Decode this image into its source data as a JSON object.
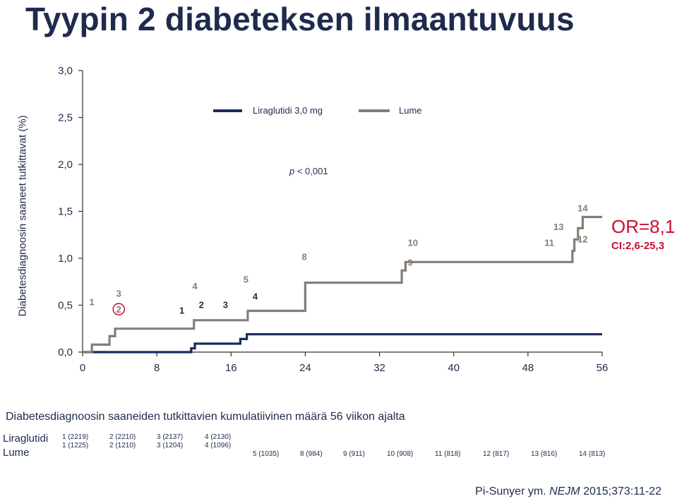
{
  "title": "Tyypin 2 diabeteksen ilmaantuvuus",
  "y_axis_label": "Diabetesdiagnoosin saaneet tutkittavat (%)",
  "legend": {
    "series_a": "Liraglutidi 3,0 mg",
    "series_b": "Lume"
  },
  "p_value": {
    "italic": "p",
    "rest": " < 0,001"
  },
  "odds_ratio": "OR=8,1",
  "ci": "CI:2,6-25,3",
  "caption": "Diabetesdiagnoosin saaneiden tutkittavien kumulatiivinen määrä 56 viikon ajalta",
  "risk_table": {
    "labels": [
      "Liraglutidi",
      "Lume"
    ],
    "row1": [
      "1 (2219)",
      "2 (2210)",
      "3 (2137)",
      "4 (2130)"
    ],
    "row2": [
      "1 (1225)",
      "2 (1210)",
      "3 (1204)",
      "4 (1096)"
    ],
    "row3": [
      "5 (1035)",
      "8 (984)",
      "9 (911)",
      "10 (908)",
      "11 (818)",
      "12 (817)",
      "13 (816)",
      "14 (813)"
    ]
  },
  "citation": {
    "prefix": "Pi-Sunyer ym. ",
    "journal": "NEJM",
    "suffix": " 2015;373:11-22"
  },
  "colors": {
    "liraglutide": "#1c2a5e",
    "placebo": "#857d76",
    "accent": "#c8102e",
    "text": "#1f2b4d",
    "axis": "#333333"
  },
  "chart_data": {
    "type": "line",
    "xlabel": "",
    "ylabel": "Diabetesdiagnoosin saaneet tutkittavat (%)",
    "x_ticks": [
      0,
      8,
      16,
      24,
      32,
      40,
      48,
      56
    ],
    "y_ticks": [
      "0,0",
      "0,5",
      "1,0",
      "1,5",
      "2,0",
      "2,5",
      "3,0"
    ],
    "xlim": [
      0,
      56
    ],
    "ylim": [
      0,
      3
    ],
    "series": [
      {
        "name": "Liraglutidi 3,0 mg",
        "step_points": [
          [
            0,
            0
          ],
          [
            11.7,
            0
          ],
          [
            11.7,
            0.04
          ],
          [
            12.1,
            0.04
          ],
          [
            12.1,
            0.09
          ],
          [
            17,
            0.09
          ],
          [
            17,
            0.14
          ],
          [
            17.7,
            0.14
          ],
          [
            17.7,
            0.19
          ],
          [
            56,
            0.19
          ]
        ]
      },
      {
        "name": "Lume",
        "step_points": [
          [
            0,
            0
          ],
          [
            1,
            0
          ],
          [
            1,
            0.08
          ],
          [
            2.9,
            0.08
          ],
          [
            2.9,
            0.17
          ],
          [
            3.5,
            0.17
          ],
          [
            3.5,
            0.25
          ],
          [
            12,
            0.25
          ],
          [
            12,
            0.34
          ],
          [
            17.8,
            0.34
          ],
          [
            17.8,
            0.44
          ],
          [
            24,
            0.44
          ],
          [
            24,
            0.74
          ],
          [
            34.4,
            0.74
          ],
          [
            34.4,
            0.87
          ],
          [
            34.8,
            0.87
          ],
          [
            34.8,
            0.96
          ],
          [
            52.8,
            0.96
          ],
          [
            52.8,
            1.08
          ],
          [
            53,
            1.08
          ],
          [
            53,
            1.2
          ],
          [
            53.4,
            1.2
          ],
          [
            53.4,
            1.32
          ],
          [
            53.9,
            1.32
          ],
          [
            53.9,
            1.44
          ],
          [
            56,
            1.44
          ]
        ]
      }
    ],
    "annotations": {
      "liraglutide_labels": [
        {
          "text": "1",
          "x": 10.7,
          "y": 0.41
        },
        {
          "text": "2",
          "x": 12.8,
          "y": 0.47
        },
        {
          "text": "3",
          "x": 15.4,
          "y": 0.47
        },
        {
          "text": "4",
          "x": 18.6,
          "y": 0.56
        }
      ],
      "placebo_labels": [
        {
          "text": "1",
          "x": 1,
          "y": 0.5
        },
        {
          "text": "2",
          "x": 3.9,
          "y": 0.42
        },
        {
          "text": "3",
          "x": 3.9,
          "y": 0.59
        },
        {
          "text": "4",
          "x": 12.1,
          "y": 0.67
        },
        {
          "text": "5",
          "x": 17.6,
          "y": 0.74
        },
        {
          "text": "8",
          "x": 23.9,
          "y": 0.98
        },
        {
          "text": "9",
          "x": 35.3,
          "y": 0.92
        },
        {
          "text": "10",
          "x": 35.6,
          "y": 1.13
        },
        {
          "text": "11",
          "x": 50.3,
          "y": 1.13
        },
        {
          "text": "12",
          "x": 53.9,
          "y": 1.17
        },
        {
          "text": "13",
          "x": 51.3,
          "y": 1.3
        },
        {
          "text": "14",
          "x": 53.9,
          "y": 1.5
        }
      ],
      "circled_label": "2"
    }
  }
}
